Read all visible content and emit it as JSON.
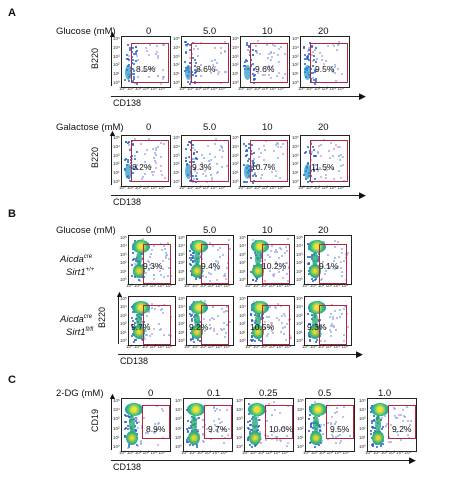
{
  "panelA": {
    "letter": "A",
    "glucose": {
      "row_label": "Glucose (mM)",
      "concentrations": [
        "0",
        "5.0",
        "10",
        "20"
      ],
      "percents": [
        "8.5%",
        "8.6%",
        "9.6%",
        "9.5%"
      ],
      "y_axis": "B220",
      "x_axis": "CD138"
    },
    "galactose": {
      "row_label": "Galactose (mM)",
      "concentrations": [
        "0",
        "5.0",
        "10",
        "20"
      ],
      "percents": [
        "8.2%",
        "9.3%",
        "10.7%",
        "11.5%"
      ],
      "y_axis": "B220",
      "x_axis": "CD138"
    }
  },
  "panelB": {
    "letter": "B",
    "row_label": "Glucose (mM)",
    "concentrations": [
      "0",
      "5.0",
      "10",
      "20"
    ],
    "genotype1": {
      "name": "Aicda",
      "sup": "cre",
      "line2": "Sirt1",
      "sup2": "+/+"
    },
    "genotype2": {
      "name": "Aicda",
      "sup": "cre",
      "line2": "Sirt1",
      "sup2": "fl/fl"
    },
    "percents_row1": [
      "9.3%",
      "9.4%",
      "10.2%",
      "9.1%"
    ],
    "percents_row2": [
      "9.7%",
      "9.2%",
      "10.5%",
      "9.3%"
    ],
    "y_axis": "B220",
    "x_axis": "CD138"
  },
  "panelC": {
    "letter": "C",
    "row_label": "2-DG (mM)",
    "concentrations": [
      "0",
      "0.1",
      "0.25",
      "0.5",
      "1.0"
    ],
    "percents": [
      "8.9%",
      "9.7%",
      "10.0%",
      "9.5%",
      "9.2%"
    ],
    "y_axis": "CD19",
    "x_axis": "CD138"
  },
  "ticks": {
    "y": [
      "10⁵",
      "10⁴",
      "10³",
      "10²",
      "10¹",
      "10⁰"
    ],
    "x": "10⁰ 10¹ 10² 10³ 10⁴ 10⁵"
  },
  "colors": {
    "gate": "#b0273e",
    "text": "#111111"
  }
}
